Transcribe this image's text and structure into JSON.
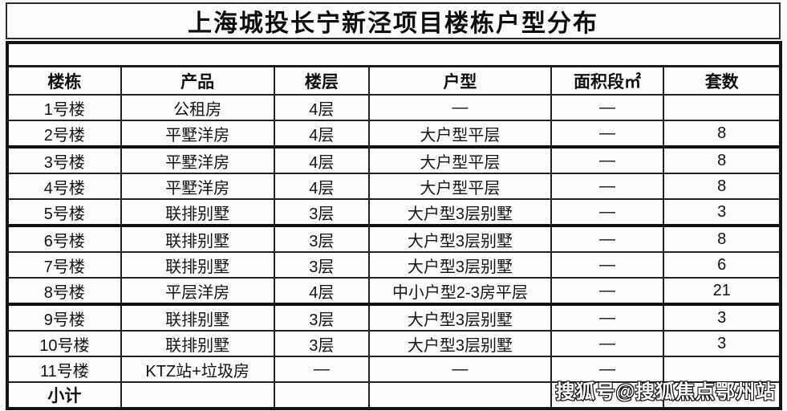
{
  "title": "上海城投长宁新泾项目楼栋户型分布",
  "watermark": "搜狐号@搜狐焦点鄂州站",
  "table": {
    "headers": [
      "楼栋",
      "产品",
      "楼层",
      "户型",
      "面积段㎡",
      "套数"
    ],
    "rows": [
      {
        "building": "1号楼",
        "product": "公租房",
        "floors": "4层",
        "unit_type": "—",
        "area_range": "—",
        "count": ""
      },
      {
        "building": "2号楼",
        "product": "平墅洋房",
        "floors": "4层",
        "unit_type": "大户型平层",
        "area_range": "—",
        "count": "8",
        "group_end": true
      },
      {
        "building": "3号楼",
        "product": "平墅洋房",
        "floors": "4层",
        "unit_type": "大户型平层",
        "area_range": "—",
        "count": "8"
      },
      {
        "building": "4号楼",
        "product": "平墅洋房",
        "floors": "4层",
        "unit_type": "大户型平层",
        "area_range": "—",
        "count": "8"
      },
      {
        "building": "5号楼",
        "product": "联排别墅",
        "floors": "3层",
        "unit_type": "大户型3层别墅",
        "area_range": "—",
        "count": "3",
        "group_end": true
      },
      {
        "building": "6号楼",
        "product": "联排别墅",
        "floors": "3层",
        "unit_type": "大户型3层别墅",
        "area_range": "—",
        "count": "8"
      },
      {
        "building": "7号楼",
        "product": "联排别墅",
        "floors": "3层",
        "unit_type": "大户型3层别墅",
        "area_range": "—",
        "count": "6"
      },
      {
        "building": "8号楼",
        "product": "平层洋房",
        "floors": "4层",
        "unit_type": "中小户型2-3房平层",
        "area_range": "—",
        "count": "21",
        "group_end": true
      },
      {
        "building": "9号楼",
        "product": "联排别墅",
        "floors": "3层",
        "unit_type": "大户型3层别墅",
        "area_range": "—",
        "count": "3"
      },
      {
        "building": "10号楼",
        "product": "联排别墅",
        "floors": "3层",
        "unit_type": "大户型3层别墅",
        "area_range": "—",
        "count": "3"
      },
      {
        "building": "11号楼",
        "product": "KTZ站+垃圾房",
        "floors": "—",
        "unit_type": "—",
        "area_range": "—",
        "count": ""
      },
      {
        "building": "小计",
        "product": "",
        "floors": "",
        "unit_type": "",
        "area_range": "",
        "count": "",
        "is_total": true
      }
    ]
  }
}
